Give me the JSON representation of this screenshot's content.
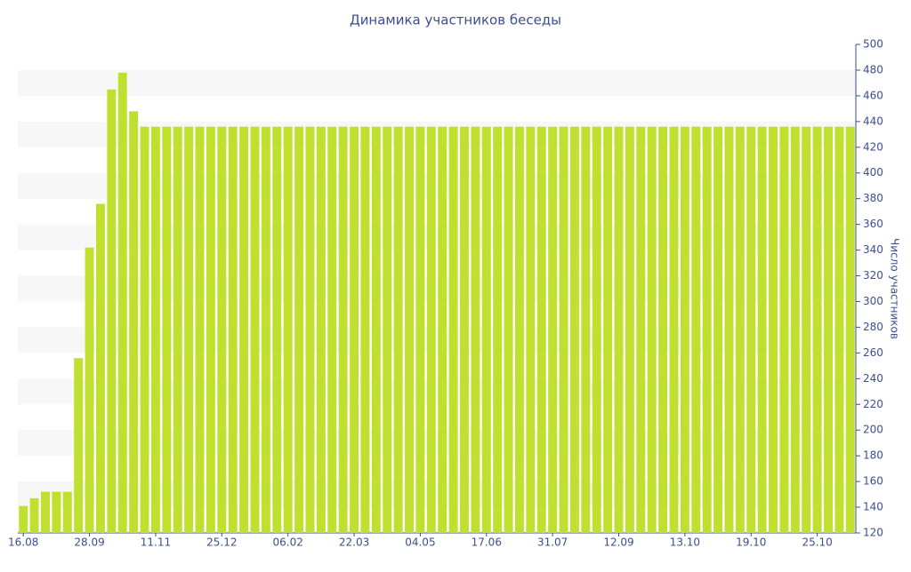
{
  "chart_data": {
    "type": "bar",
    "title": "Динамика участников беседы",
    "y_label": "Число участников",
    "categories": [
      "16.08",
      null,
      null,
      null,
      null,
      null,
      "28.09",
      null,
      null,
      null,
      null,
      null,
      "11.11",
      null,
      null,
      null,
      null,
      null,
      "25.12",
      null,
      null,
      null,
      null,
      null,
      "06.02",
      null,
      null,
      null,
      null,
      null,
      "22.03",
      null,
      null,
      null,
      null,
      null,
      "04.05",
      null,
      null,
      null,
      null,
      null,
      "17.06",
      null,
      null,
      null,
      null,
      null,
      "31.07",
      null,
      null,
      null,
      null,
      null,
      "12.09",
      null,
      null,
      null,
      null,
      null,
      "13.10",
      null,
      null,
      null,
      null,
      null,
      "19.10",
      null,
      null,
      null,
      null,
      null,
      "25.10",
      null,
      null,
      null
    ],
    "values": [
      141,
      147,
      152,
      152,
      152,
      256,
      342,
      376,
      465,
      478,
      448,
      436,
      436,
      436,
      436,
      436,
      436,
      436,
      436,
      436,
      436,
      436,
      436,
      436,
      436,
      436,
      436,
      436,
      436,
      436,
      436,
      436,
      436,
      436,
      436,
      436,
      436,
      436,
      436,
      436,
      436,
      436,
      436,
      436,
      436,
      436,
      436,
      436,
      436,
      436,
      436,
      436,
      436,
      436,
      436,
      436,
      436,
      436,
      436,
      436,
      436,
      436,
      436,
      436,
      436,
      436,
      436,
      436,
      436,
      436,
      436,
      436,
      436,
      436,
      436,
      436
    ],
    "color": "#bfe02e",
    "ylim": [
      120,
      500
    ],
    "yticks": [
      120,
      140,
      160,
      180,
      200,
      220,
      240,
      260,
      280,
      300,
      320,
      340,
      360,
      380,
      400,
      420,
      440,
      460,
      480,
      500
    ],
    "grid": true,
    "y_axis_side": "right"
  }
}
